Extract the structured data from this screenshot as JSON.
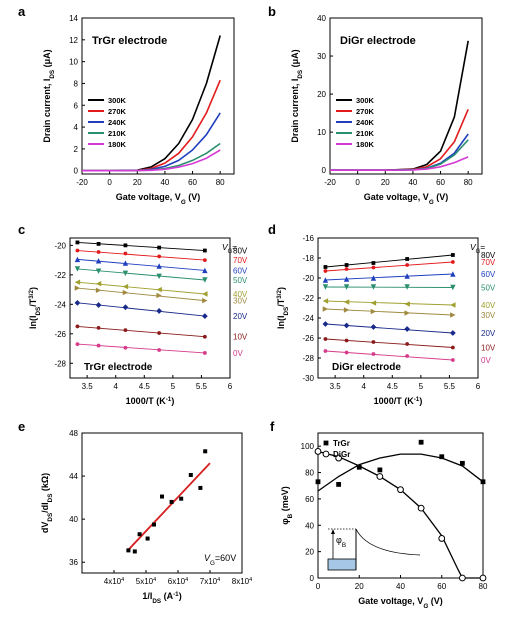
{
  "chart_data": [
    {
      "id": "a",
      "type": "line",
      "panel_label": "a",
      "inset_title": "TrGr electrode",
      "xlabel": "Gate voltage, V",
      "xlabel_sub": "G",
      "xlabel_unit": " (V)",
      "ylabel": "Drain current, I",
      "ylabel_sub": "DS",
      "ylabel_unit": " (μA)",
      "xlim": [
        -20,
        90
      ],
      "ylim": [
        -0.3,
        14
      ],
      "xticks": [
        -20,
        0,
        20,
        40,
        60,
        80
      ],
      "yticks": [
        0,
        2,
        4,
        6,
        8,
        10,
        12,
        14
      ],
      "legend_position": "left",
      "series": [
        {
          "name": "300K",
          "color": "#000000",
          "x": [
            -20,
            0,
            20,
            30,
            40,
            50,
            60,
            70,
            80
          ],
          "y": [
            0,
            0,
            0.05,
            0.35,
            1.1,
            2.5,
            4.7,
            8.0,
            12.4
          ]
        },
        {
          "name": "270K",
          "color": "#e31a1c",
          "x": [
            -20,
            0,
            20,
            30,
            40,
            50,
            60,
            70,
            80
          ],
          "y": [
            0,
            0,
            0.03,
            0.2,
            0.7,
            1.6,
            3.1,
            5.3,
            8.3
          ]
        },
        {
          "name": "240K",
          "color": "#1f3fbf",
          "x": [
            -20,
            0,
            20,
            30,
            40,
            50,
            60,
            70,
            80
          ],
          "y": [
            0,
            0,
            0.02,
            0.12,
            0.4,
            0.95,
            1.9,
            3.3,
            5.3
          ]
        },
        {
          "name": "210K",
          "color": "#2a8f6f",
          "x": [
            -20,
            0,
            20,
            30,
            40,
            50,
            60,
            70,
            80
          ],
          "y": [
            0,
            0,
            0.01,
            0.06,
            0.2,
            0.48,
            0.95,
            1.6,
            2.5
          ]
        },
        {
          "name": "180K",
          "color": "#d63ad6",
          "x": [
            -20,
            0,
            20,
            30,
            40,
            50,
            60,
            70,
            80
          ],
          "y": [
            0,
            0,
            0.01,
            0.04,
            0.13,
            0.33,
            0.65,
            1.15,
            1.9
          ]
        }
      ]
    },
    {
      "id": "b",
      "type": "line",
      "panel_label": "b",
      "inset_title": "DiGr electrode",
      "xlabel": "Gate voltage, V",
      "xlabel_sub": "G",
      "xlabel_unit": " (V)",
      "ylabel": "Drain current, I",
      "ylabel_sub": "DS",
      "ylabel_unit": " (μA)",
      "xlim": [
        -20,
        90
      ],
      "ylim": [
        -1,
        40
      ],
      "xticks": [
        -20,
        0,
        20,
        40,
        60,
        80
      ],
      "yticks": [
        0,
        10,
        20,
        30,
        40
      ],
      "legend_position": "left",
      "series": [
        {
          "name": "300K",
          "color": "#000000",
          "x": [
            -20,
            0,
            20,
            40,
            50,
            60,
            70,
            80
          ],
          "y": [
            0,
            0,
            0,
            0.3,
            1.5,
            5,
            14,
            34
          ]
        },
        {
          "name": "270K",
          "color": "#e31a1c",
          "x": [
            -20,
            0,
            20,
            40,
            50,
            60,
            70,
            80
          ],
          "y": [
            0,
            0,
            0,
            0.2,
            0.9,
            3,
            7.5,
            16
          ]
        },
        {
          "name": "240K",
          "color": "#1f3fbf",
          "x": [
            -20,
            0,
            20,
            40,
            50,
            60,
            70,
            80
          ],
          "y": [
            0,
            0,
            0,
            0.1,
            0.5,
            1.8,
            4.5,
            9.5
          ]
        },
        {
          "name": "210K",
          "color": "#2a8f6f",
          "x": [
            -20,
            0,
            20,
            40,
            50,
            60,
            70,
            80
          ],
          "y": [
            0,
            0,
            0,
            0.1,
            0.45,
            1.6,
            4,
            8
          ]
        },
        {
          "name": "180K",
          "color": "#d63ad6",
          "x": [
            -20,
            0,
            20,
            40,
            50,
            60,
            70,
            80
          ],
          "y": [
            0,
            0,
            0,
            0.05,
            0.3,
            0.9,
            2,
            3.5
          ]
        }
      ]
    },
    {
      "id": "c",
      "type": "scatter",
      "panel_label": "c",
      "inset_title": "TrGr electrode",
      "xlabel": "1000/T (K",
      "xlabel_unit_sup": "-1",
      "xlabel_close": ")",
      "ylabel": "ln(I",
      "ylabel_sub": "DS",
      "ylabel_mid": "/T",
      "ylabel_sup": "3/2",
      "ylabel_close": ")",
      "xlim": [
        3.2,
        6.0
      ],
      "ylim": [
        -29,
        -19.5
      ],
      "xticks": [
        3.5,
        4.0,
        4.5,
        5.0,
        5.5,
        6.0
      ],
      "yticks": [
        -20,
        -22,
        -24,
        -26,
        -28
      ],
      "vg_header": "V",
      "vg_header_sub": "G",
      "vg_header_tail": "=",
      "x": [
        3.33,
        3.7,
        4.17,
        4.76,
        5.56
      ],
      "series": [
        {
          "name": "80V",
          "color": "#000000",
          "marker": "square",
          "y": [
            -19.8,
            -19.9,
            -20.0,
            -20.15,
            -20.35
          ]
        },
        {
          "name": "70V",
          "color": "#e31a1c",
          "marker": "circle",
          "y": [
            -20.35,
            -20.45,
            -20.55,
            -20.75,
            -21.0
          ]
        },
        {
          "name": "60V",
          "color": "#1f3fbf",
          "marker": "triangle-up",
          "y": [
            -20.95,
            -21.05,
            -21.2,
            -21.4,
            -21.7
          ]
        },
        {
          "name": "50V",
          "color": "#2a8f6f",
          "marker": "triangle-down",
          "y": [
            -21.6,
            -21.75,
            -21.9,
            -22.1,
            -22.35
          ]
        },
        {
          "name": "40V",
          "color": "#a0a030",
          "marker": "triangle-left",
          "y": [
            -22.5,
            -22.6,
            -22.8,
            -23.0,
            -23.3
          ]
        },
        {
          "name": "30V",
          "color": "#a08a40",
          "marker": "triangle-right",
          "y": [
            -22.9,
            -23.05,
            -23.2,
            -23.4,
            -23.75
          ]
        },
        {
          "name": "20V",
          "color": "#1a2a8a",
          "marker": "diamond",
          "y": [
            -23.9,
            -24.05,
            -24.2,
            -24.45,
            -24.8
          ]
        },
        {
          "name": "10V",
          "color": "#8b1a1a",
          "marker": "circle",
          "y": [
            -25.5,
            -25.6,
            -25.75,
            -25.95,
            -26.2
          ]
        },
        {
          "name": "0V",
          "color": "#d63a8a",
          "marker": "circle",
          "y": [
            -26.7,
            -26.8,
            -26.95,
            -27.1,
            -27.3
          ]
        }
      ]
    },
    {
      "id": "d",
      "type": "scatter",
      "panel_label": "d",
      "inset_title": "DiGr electrode",
      "xlabel": "1000/T (K",
      "xlabel_unit_sup": "-1",
      "xlabel_close": ")",
      "ylabel": "ln(I",
      "ylabel_sub": "DS",
      "ylabel_mid": "/T",
      "ylabel_sup": "3/2",
      "ylabel_close": ")",
      "xlim": [
        3.2,
        6.0
      ],
      "ylim": [
        -30,
        -16
      ],
      "xticks": [
        3.5,
        4.0,
        4.5,
        5.0,
        5.5,
        6.0
      ],
      "yticks": [
        -16,
        -18,
        -20,
        -22,
        -24,
        -26,
        -28,
        -30
      ],
      "vg_header": "V",
      "vg_header_sub": "G",
      "vg_header_tail": "=",
      "x": [
        3.33,
        3.7,
        4.17,
        4.76,
        5.56
      ],
      "series": [
        {
          "name": "80V",
          "color": "#000000",
          "marker": "square",
          "y": [
            -18.9,
            -18.7,
            -18.5,
            -18.1,
            -17.7
          ]
        },
        {
          "name": "70V",
          "color": "#e31a1c",
          "marker": "circle",
          "y": [
            -19.3,
            -19.1,
            -18.95,
            -18.7,
            -18.4
          ]
        },
        {
          "name": "60V",
          "color": "#1f3fbf",
          "marker": "triangle-up",
          "y": [
            -20.2,
            -20.1,
            -20.0,
            -19.8,
            -19.6
          ]
        },
        {
          "name": "50V",
          "color": "#2a8f6f",
          "marker": "triangle-down",
          "y": [
            -20.9,
            -20.9,
            -20.9,
            -20.9,
            -20.95
          ]
        },
        {
          "name": "40V",
          "color": "#a0a030",
          "marker": "triangle-left",
          "y": [
            -22.3,
            -22.4,
            -22.5,
            -22.6,
            -22.7
          ]
        },
        {
          "name": "30V",
          "color": "#a08a40",
          "marker": "triangle-right",
          "y": [
            -23.1,
            -23.2,
            -23.35,
            -23.5,
            -23.7
          ]
        },
        {
          "name": "20V",
          "color": "#1a2a8a",
          "marker": "diamond",
          "y": [
            -24.6,
            -24.75,
            -24.9,
            -25.1,
            -25.5
          ]
        },
        {
          "name": "10V",
          "color": "#8b1a1a",
          "marker": "circle",
          "y": [
            -26.1,
            -26.25,
            -26.4,
            -26.6,
            -26.95
          ]
        },
        {
          "name": "0V",
          "color": "#d63a8a",
          "marker": "circle",
          "y": [
            -27.3,
            -27.45,
            -27.6,
            -27.8,
            -28.2
          ]
        }
      ]
    },
    {
      "id": "e",
      "type": "scatter",
      "panel_label": "e",
      "xlabel": "1/I",
      "xlabel_sub": "DS",
      "xlabel_unit": " (A",
      "xlabel_sup": "-1",
      "xlabel_close": ")",
      "ylabel": "dV",
      "ylabel_sub1": "DS",
      "ylabel_mid": "/dI",
      "ylabel_sub2": "DS",
      "ylabel_unit": " (kΩ)",
      "xlim": [
        30000,
        80000
      ],
      "ylim": [
        35,
        48
      ],
      "xticks": [
        40000,
        50000,
        60000,
        70000,
        80000
      ],
      "xtick_labels": [
        [
          "4x10",
          "4"
        ],
        [
          "5x10",
          "4"
        ],
        [
          "6x10",
          "4"
        ],
        [
          "7x10",
          "4"
        ],
        [
          "8x10",
          "4"
        ]
      ],
      "yticks": [
        36,
        40,
        44,
        48
      ],
      "annotation": "V",
      "annotation_sub": "G",
      "annotation_tail": "=60V",
      "points": [
        [
          44500,
          37.1
        ],
        [
          46500,
          37.0
        ],
        [
          48000,
          38.6
        ],
        [
          50500,
          38.2
        ],
        [
          52500,
          39.5
        ],
        [
          55000,
          42.1
        ],
        [
          58000,
          41.6
        ],
        [
          61000,
          41.9
        ],
        [
          64000,
          44.1
        ],
        [
          67000,
          42.9
        ],
        [
          68500,
          46.3
        ]
      ],
      "fit": [
        [
          44000,
          37.0
        ],
        [
          70000,
          45.2
        ]
      ],
      "fit_color": "#d62020"
    },
    {
      "id": "f",
      "type": "scatter",
      "panel_label": "f",
      "xlabel": "Gate voltage, V",
      "xlabel_sub": "G",
      "xlabel_unit": " (V)",
      "ylabel": "φ",
      "ylabel_sub": "B",
      "ylabel_unit": " (meV)",
      "xlim": [
        0,
        80
      ],
      "ylim": [
        0,
        110
      ],
      "xticks": [
        0,
        20,
        40,
        60,
        80
      ],
      "yticks": [
        0,
        20,
        40,
        60,
        80,
        100
      ],
      "legend_position": "top-left",
      "series": [
        {
          "name": "TrGr",
          "marker": "square-filled",
          "color": "#000000",
          "points": [
            [
              0,
              73
            ],
            [
              10,
              71
            ],
            [
              20,
              84
            ],
            [
              30,
              82
            ],
            [
              50,
              103
            ],
            [
              60,
              92
            ],
            [
              70,
              87
            ],
            [
              80,
              73
            ]
          ],
          "curve": [
            [
              0,
              66
            ],
            [
              10,
              77
            ],
            [
              20,
              86
            ],
            [
              30,
              91
            ],
            [
              40,
              94
            ],
            [
              50,
              94
            ],
            [
              60,
              91
            ],
            [
              70,
              85
            ],
            [
              80,
              73
            ]
          ]
        },
        {
          "name": "DiGr",
          "marker": "circle-open",
          "color": "#000000",
          "points": [
            [
              0,
              96
            ],
            [
              10,
              91
            ],
            [
              30,
              77
            ],
            [
              40,
              67
            ],
            [
              50,
              53
            ],
            [
              60,
              30
            ],
            [
              70,
              0
            ],
            [
              80,
              0
            ]
          ],
          "curve": [
            [
              0,
              96
            ],
            [
              10,
              92
            ],
            [
              20,
              85
            ],
            [
              30,
              77
            ],
            [
              40,
              67
            ],
            [
              50,
              53
            ],
            [
              60,
              32
            ],
            [
              68,
              6
            ],
            [
              70,
              0
            ],
            [
              80,
              0
            ]
          ]
        }
      ],
      "inset_label": "φ",
      "inset_label_sub": "B"
    }
  ]
}
